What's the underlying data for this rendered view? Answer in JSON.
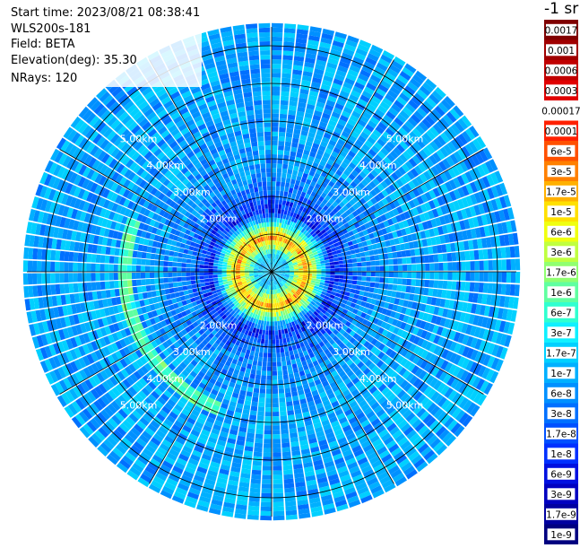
{
  "header": {
    "start_time": "Start time: 2023/08/21 08:38:41",
    "instrument": "WLS200s-181",
    "field": "Field: BETA",
    "elevation": "Elevation(deg): 35.30",
    "nrays": "NRays: 120"
  },
  "colorbar": {
    "unit": "-1 sr",
    "ticks": [
      {
        "label": "0.0017",
        "color": "#800000"
      },
      {
        "label": "0.001",
        "color": "#a00000"
      },
      {
        "label": "0.0006",
        "color": "#c00000"
      },
      {
        "label": "0.0003",
        "color": "#e00000"
      },
      {
        "label": "0.00017",
        "color": "#ffffff"
      },
      {
        "label": "0.0001",
        "color": "#ff2000"
      },
      {
        "label": "6e-5",
        "color": "#ff5000"
      },
      {
        "label": "3e-5",
        "color": "#ff8000"
      },
      {
        "label": "1.7e-5",
        "color": "#ffb000"
      },
      {
        "label": "1e-5",
        "color": "#ffe000"
      },
      {
        "label": "6e-6",
        "color": "#f0ff10"
      },
      {
        "label": "3e-6",
        "color": "#c0ff40"
      },
      {
        "label": "1.7e-6",
        "color": "#90ff70"
      },
      {
        "label": "1e-6",
        "color": "#60ffa0"
      },
      {
        "label": "6e-7",
        "color": "#30ffd0"
      },
      {
        "label": "3e-7",
        "color": "#10f0ff"
      },
      {
        "label": "1.7e-7",
        "color": "#00d0ff"
      },
      {
        "label": "1e-7",
        "color": "#00b0ff"
      },
      {
        "label": "6e-8",
        "color": "#0090ff"
      },
      {
        "label": "3e-8",
        "color": "#0070ff"
      },
      {
        "label": "1.7e-8",
        "color": "#0050ff"
      },
      {
        "label": "1e-8",
        "color": "#0030ff"
      },
      {
        "label": "6e-9",
        "color": "#0010e0"
      },
      {
        "label": "3e-9",
        "color": "#0000c0"
      },
      {
        "label": "1.7e-9",
        "color": "#0000a0"
      },
      {
        "label": "1e-9",
        "color": "#000080"
      }
    ]
  },
  "chart_data": {
    "type": "heatmap",
    "projection": "polar (plan position indicator)",
    "field": "BETA",
    "color_scale": "log",
    "value_range": [
      1e-09,
      0.0017
    ],
    "n_rays": 120,
    "range_rings_km": [
      1,
      2,
      3,
      4,
      5,
      6
    ],
    "range_labels": {
      "2": "2.00km",
      "3": "3.00km",
      "4": "4.00km",
      "5": "5.00km"
    },
    "range_label_directions_deg": [
      315,
      45,
      135,
      225
    ],
    "spokes_deg_step": 30,
    "max_range_km": 6.5,
    "approx_value_profile": [
      {
        "range_km": 0.1,
        "beta": 1.7e-07
      },
      {
        "range_km": 0.4,
        "beta": 1.7e-07
      },
      {
        "range_km": 0.9,
        "beta": 3e-05
      },
      {
        "range_km": 1.2,
        "beta": 1.7e-06
      },
      {
        "range_km": 1.6,
        "beta": 1e-08
      },
      {
        "range_km": 2.5,
        "beta": 6e-08
      },
      {
        "range_km": 4.0,
        "beta": 1e-07
      },
      {
        "range_km": 5.5,
        "beta": 1e-07
      }
    ]
  }
}
